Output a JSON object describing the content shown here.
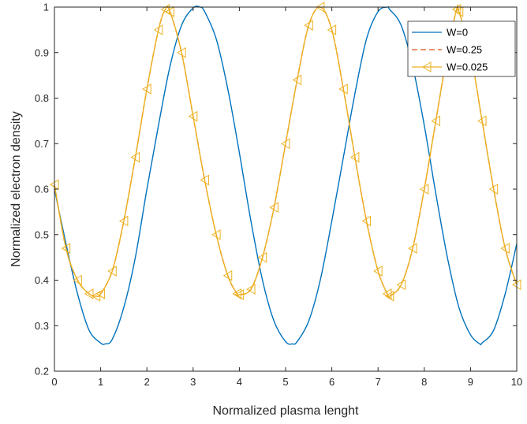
{
  "chart_data": {
    "type": "line",
    "title": "",
    "xlabel": "Normalized plasma lenght",
    "ylabel": "Normalized electron density",
    "xlim": [
      0,
      10
    ],
    "ylim": [
      0.2,
      1
    ],
    "xticks": [
      "0",
      "1",
      "2",
      "3",
      "4",
      "5",
      "6",
      "7",
      "8",
      "9",
      "10"
    ],
    "yticks": [
      "0.2",
      "0.3",
      "0.4",
      "0.5",
      "0.6",
      "0.7",
      "0.8",
      "0.9",
      "1"
    ],
    "grid": false,
    "legend_position": "top-right",
    "series": [
      {
        "name": "W=0",
        "color": "#0072BD",
        "style": "solid",
        "marker": "none",
        "x": [
          0,
          0.25,
          0.5,
          0.75,
          1.0,
          1.1,
          1.25,
          1.5,
          1.75,
          2.0,
          2.25,
          2.5,
          2.75,
          3.0,
          3.15,
          3.25,
          3.5,
          3.75,
          4.0,
          4.25,
          4.5,
          4.75,
          5.0,
          5.15,
          5.25,
          5.5,
          5.75,
          6.0,
          6.25,
          6.5,
          6.75,
          7.0,
          7.2,
          7.25,
          7.5,
          7.75,
          8.0,
          8.25,
          8.5,
          8.75,
          9.0,
          9.2,
          9.25,
          9.5,
          9.75,
          10.0
        ],
        "y": [
          0.6,
          0.48,
          0.37,
          0.29,
          0.262,
          0.26,
          0.27,
          0.34,
          0.45,
          0.6,
          0.74,
          0.87,
          0.96,
          0.998,
          1.0,
          0.99,
          0.93,
          0.82,
          0.68,
          0.53,
          0.4,
          0.31,
          0.265,
          0.26,
          0.265,
          0.31,
          0.4,
          0.53,
          0.67,
          0.81,
          0.93,
          0.99,
          1.0,
          0.995,
          0.96,
          0.87,
          0.74,
          0.59,
          0.45,
          0.34,
          0.28,
          0.26,
          0.262,
          0.29,
          0.37,
          0.48
        ]
      },
      {
        "name": "W=0.25",
        "color": "#D95319",
        "style": "dashed",
        "marker": "none",
        "x": [
          0,
          0.25,
          0.5,
          0.75,
          0.9,
          1.0,
          1.25,
          1.5,
          1.75,
          2.0,
          2.25,
          2.4,
          2.5,
          2.75,
          3.0,
          3.25,
          3.5,
          3.75,
          3.95,
          4.0,
          4.25,
          4.5,
          4.75,
          5.0,
          5.25,
          5.5,
          5.75,
          6.0,
          6.25,
          6.5,
          6.75,
          7.0,
          7.2,
          7.25,
          7.5,
          7.75,
          8.0,
          8.25,
          8.5,
          8.7,
          8.75,
          9.0,
          9.25,
          9.5,
          9.75,
          10.0
        ],
        "y": [
          0.61,
          0.47,
          0.4,
          0.37,
          0.365,
          0.37,
          0.42,
          0.53,
          0.67,
          0.82,
          0.95,
          0.995,
          0.99,
          0.9,
          0.76,
          0.62,
          0.5,
          0.41,
          0.37,
          0.368,
          0.38,
          0.45,
          0.56,
          0.7,
          0.84,
          0.96,
          1.0,
          0.95,
          0.82,
          0.67,
          0.53,
          0.42,
          0.37,
          0.365,
          0.39,
          0.47,
          0.6,
          0.75,
          0.9,
          0.995,
          0.99,
          0.9,
          0.75,
          0.6,
          0.47,
          0.39
        ]
      },
      {
        "name": "W=0.025",
        "color": "#EDB120",
        "style": "solid",
        "marker": "triangle-left",
        "x": [
          0,
          0.25,
          0.5,
          0.75,
          0.9,
          1.0,
          1.25,
          1.5,
          1.75,
          2.0,
          2.25,
          2.4,
          2.5,
          2.75,
          3.0,
          3.25,
          3.5,
          3.75,
          3.95,
          4.0,
          4.25,
          4.5,
          4.75,
          5.0,
          5.25,
          5.5,
          5.75,
          6.0,
          6.25,
          6.5,
          6.75,
          7.0,
          7.2,
          7.25,
          7.5,
          7.75,
          8.0,
          8.25,
          8.5,
          8.7,
          8.75,
          9.0,
          9.25,
          9.5,
          9.75,
          10.0
        ],
        "y": [
          0.61,
          0.47,
          0.4,
          0.37,
          0.365,
          0.37,
          0.42,
          0.53,
          0.67,
          0.82,
          0.95,
          0.995,
          0.99,
          0.9,
          0.76,
          0.62,
          0.5,
          0.41,
          0.37,
          0.368,
          0.38,
          0.45,
          0.56,
          0.7,
          0.84,
          0.96,
          1.0,
          0.95,
          0.82,
          0.67,
          0.53,
          0.42,
          0.37,
          0.365,
          0.39,
          0.47,
          0.6,
          0.75,
          0.9,
          0.995,
          0.99,
          0.9,
          0.75,
          0.6,
          0.47,
          0.39
        ]
      }
    ]
  }
}
